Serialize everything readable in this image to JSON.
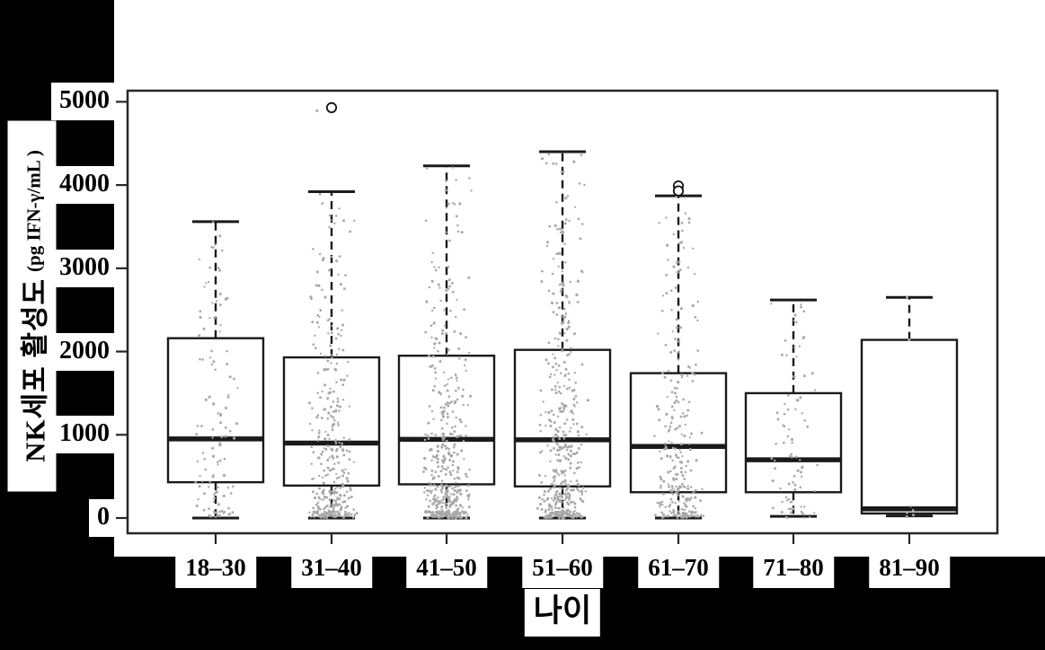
{
  "y_axis": {
    "label_main": "NK세포 활성도",
    "label_unit": "(pg IFN-γ/mL )",
    "ticks": [
      "5000",
      "4000",
      "3000",
      "2000",
      "1000",
      "0"
    ],
    "tick_values": [
      5000,
      4000,
      3000,
      2000,
      1000,
      0
    ]
  },
  "x_axis": {
    "title": "나이",
    "categories": [
      "18–30",
      "31–40",
      "41–50",
      "51–60",
      "61–70",
      "71–80",
      "81–90"
    ]
  },
  "colors": {
    "background": "#000000",
    "panel": "#ffffff",
    "frame": "#262626",
    "box_stroke": "#1a1a1a",
    "median": "#000000",
    "dot": "#a8a8a8",
    "outlier_stroke": "#111111"
  },
  "chart_data": {
    "type": "boxplot",
    "title": "",
    "xlabel": "나이",
    "ylabel": "NK세포 활성도 (pg IFN-γ/mL )",
    "ylim": [
      0,
      5000
    ],
    "grid": false,
    "legend": false,
    "categories": [
      "18–30",
      "31–40",
      "41–50",
      "51–60",
      "61–70",
      "71–80",
      "81–90"
    ],
    "boxes": [
      {
        "category": "18–30",
        "whisker_low": 0,
        "q1": 430,
        "median": 950,
        "q3": 2160,
        "whisker_high": 3560,
        "outliers": []
      },
      {
        "category": "31–40",
        "whisker_low": 0,
        "q1": 390,
        "median": 900,
        "q3": 1930,
        "whisker_high": 3920,
        "outliers": [
          4930
        ]
      },
      {
        "category": "41–50",
        "whisker_low": 0,
        "q1": 405,
        "median": 945,
        "q3": 1950,
        "whisker_high": 4230,
        "outliers": []
      },
      {
        "category": "51–60",
        "whisker_low": 0,
        "q1": 380,
        "median": 940,
        "q3": 2020,
        "whisker_high": 4400,
        "outliers": []
      },
      {
        "category": "61–70",
        "whisker_low": 0,
        "q1": 310,
        "median": 860,
        "q3": 1740,
        "whisker_high": 3870,
        "outliers": [
          3990,
          3930
        ]
      },
      {
        "category": "71–80",
        "whisker_low": 20,
        "q1": 310,
        "median": 700,
        "q3": 1500,
        "whisker_high": 2620,
        "outliers": []
      },
      {
        "category": "81–90",
        "whisker_low": 25,
        "q1": 55,
        "median": 110,
        "q3": 2140,
        "whisker_high": 2650,
        "outliers": []
      }
    ],
    "jitter_overlay": {
      "description": "raw individual samples shown as small gray dots jittered around each group center",
      "bands": {
        "18–30": [
          [
            0,
            80,
            14
          ],
          [
            80,
            400,
            20
          ],
          [
            400,
            900,
            20
          ],
          [
            900,
            1400,
            18
          ],
          [
            1400,
            2000,
            14
          ],
          [
            2000,
            2600,
            12
          ],
          [
            2600,
            3100,
            10
          ],
          [
            3100,
            3560,
            7
          ]
        ],
        "31–40": [
          [
            0,
            80,
            70
          ],
          [
            80,
            400,
            75
          ],
          [
            400,
            900,
            60
          ],
          [
            900,
            1400,
            45
          ],
          [
            1400,
            2000,
            32
          ],
          [
            2000,
            2600,
            24
          ],
          [
            2600,
            3200,
            18
          ],
          [
            3200,
            3920,
            12
          ],
          [
            4880,
            4940,
            1
          ]
        ],
        "41–50": [
          [
            0,
            80,
            100
          ],
          [
            80,
            400,
            110
          ],
          [
            400,
            900,
            75
          ],
          [
            900,
            1400,
            55
          ],
          [
            1400,
            2000,
            38
          ],
          [
            2000,
            2600,
            28
          ],
          [
            2600,
            3200,
            20
          ],
          [
            3200,
            3800,
            12
          ],
          [
            3800,
            4230,
            7
          ]
        ],
        "51–60": [
          [
            0,
            80,
            85
          ],
          [
            80,
            400,
            100
          ],
          [
            400,
            900,
            75
          ],
          [
            900,
            1400,
            55
          ],
          [
            1400,
            2000,
            42
          ],
          [
            2000,
            2600,
            32
          ],
          [
            2600,
            3200,
            25
          ],
          [
            3200,
            3800,
            18
          ],
          [
            3800,
            4400,
            13
          ]
        ],
        "61–70": [
          [
            0,
            80,
            50
          ],
          [
            80,
            400,
            60
          ],
          [
            400,
            900,
            48
          ],
          [
            900,
            1400,
            35
          ],
          [
            1400,
            2000,
            26
          ],
          [
            2000,
            2600,
            18
          ],
          [
            2600,
            3200,
            14
          ],
          [
            3200,
            3870,
            14
          ]
        ],
        "71–80": [
          [
            0,
            80,
            10
          ],
          [
            80,
            400,
            18
          ],
          [
            400,
            900,
            20
          ],
          [
            900,
            1400,
            16
          ],
          [
            1400,
            2000,
            12
          ],
          [
            2000,
            2600,
            12
          ]
        ]
      },
      "explicit_points": {
        "81–90": [
          2650,
          2140,
          140,
          95,
          60,
          35,
          15
        ]
      }
    }
  }
}
